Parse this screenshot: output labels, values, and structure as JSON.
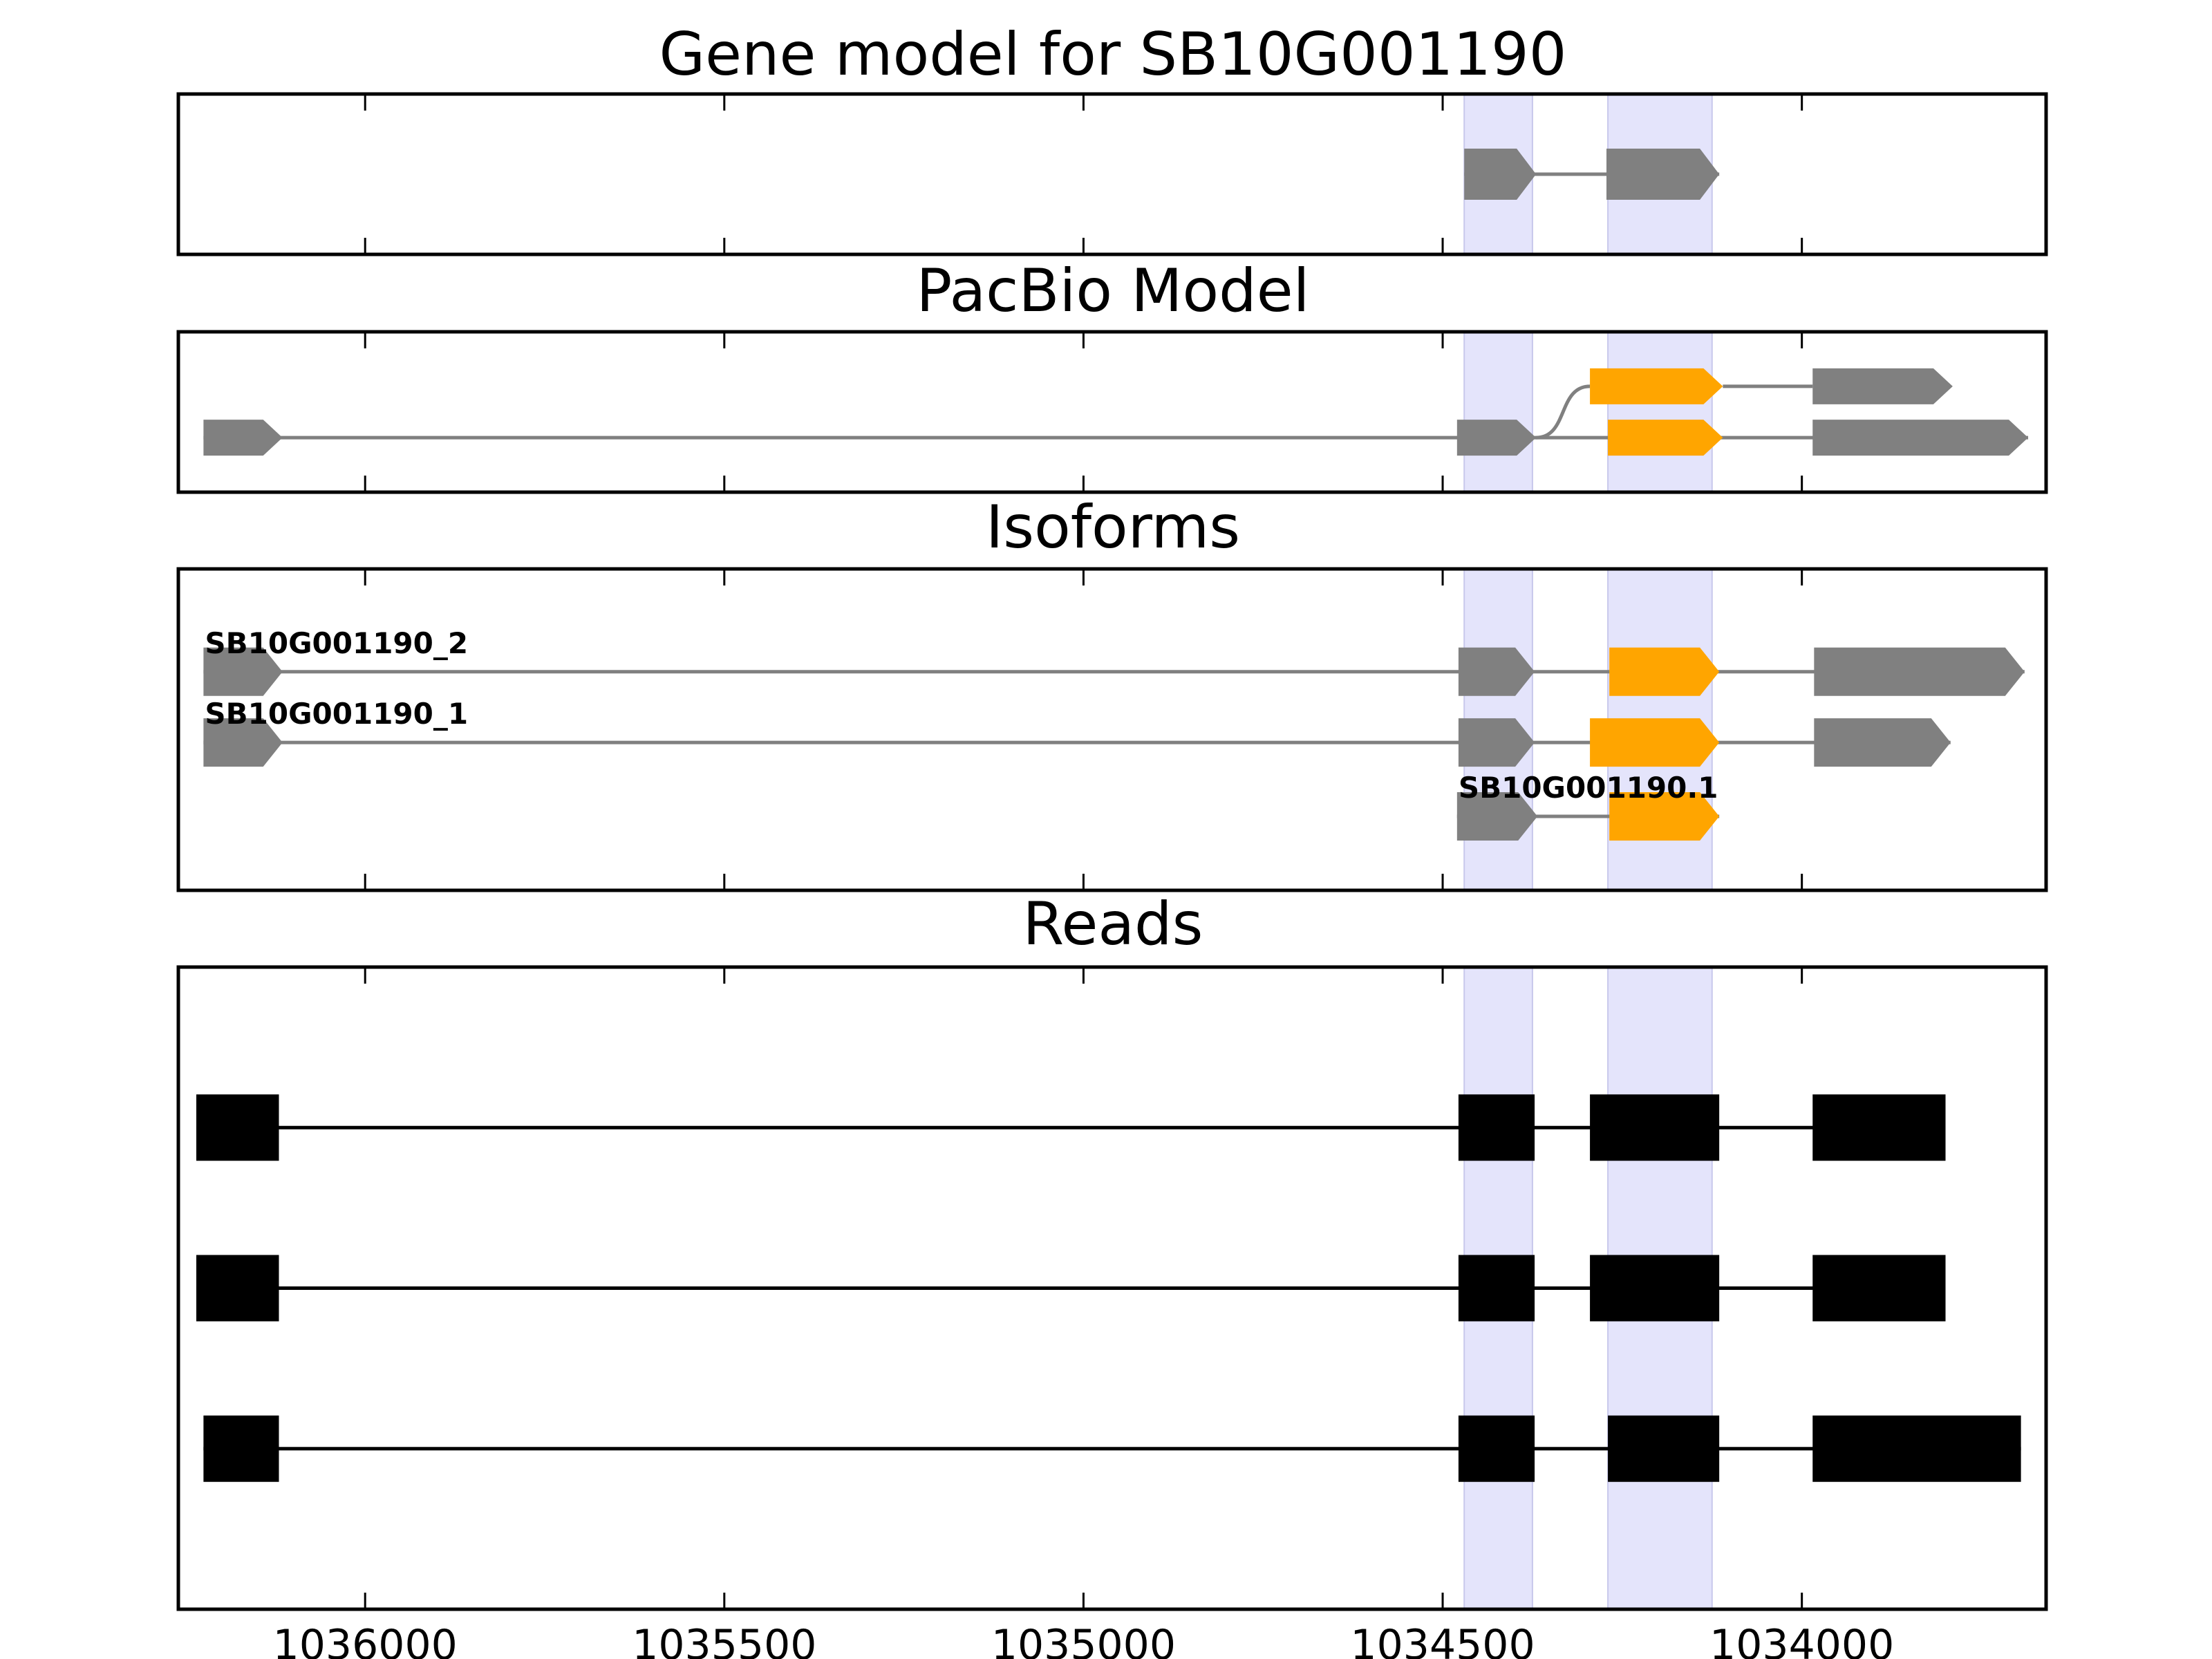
{
  "chart_data": {
    "type": "gene-model-tracks",
    "xlim": [
      1036260,
      1033660
    ],
    "xticks": [
      1036000,
      1035500,
      1035000,
      1034500,
      1034000
    ],
    "highlight_regions": [
      [
        1034470,
        1034375
      ],
      [
        1034270,
        1034125
      ]
    ],
    "colors": {
      "utr": "#808080",
      "cds": "#ffa500",
      "read": "#000000",
      "highlight": "#e4e4fb"
    },
    "panels": [
      {
        "id": "gene-model",
        "title": "Gene model for SB10G001190",
        "tracks": [
          {
            "y": 0.5,
            "label": "",
            "exons": [
              {
                "start": 1034470,
                "end": 1034370,
                "kind": "utr",
                "arrow": true
              },
              {
                "start": 1034272,
                "end": 1034115,
                "kind": "utr",
                "arrow": true
              }
            ],
            "bend": false
          }
        ]
      },
      {
        "id": "pacbio-model",
        "title": "PacBio Model",
        "tracks": [
          {
            "y": 0.34,
            "label": "",
            "exons": [
              {
                "start": 1034295,
                "end": 1034110,
                "kind": "cds",
                "arrow": true
              },
              {
                "start": 1033985,
                "end": 1033790,
                "kind": "utr",
                "arrow": true
              }
            ],
            "bend": true,
            "bend_from": 1034370
          },
          {
            "y": 0.66,
            "label": "",
            "exons": [
              {
                "start": 1036225,
                "end": 1036115,
                "kind": "utr",
                "arrow": true
              },
              {
                "start": 1034480,
                "end": 1034370,
                "kind": "utr",
                "arrow": true
              },
              {
                "start": 1034270,
                "end": 1034110,
                "kind": "cds",
                "arrow": true
              },
              {
                "start": 1033985,
                "end": 1033685,
                "kind": "utr",
                "arrow": true
              }
            ],
            "bend": false
          }
        ]
      },
      {
        "id": "isoforms",
        "title": "Isoforms",
        "tracks": [
          {
            "y": 0.32,
            "label": "SB10G001190_2",
            "exons": [
              {
                "start": 1036225,
                "end": 1036115,
                "kind": "utr",
                "arrow": true
              },
              {
                "start": 1034478,
                "end": 1034372,
                "kind": "utr",
                "arrow": true
              },
              {
                "start": 1034268,
                "end": 1034115,
                "kind": "cds",
                "arrow": true
              },
              {
                "start": 1033983,
                "end": 1033690,
                "kind": "utr",
                "arrow": true
              }
            ],
            "bend": false
          },
          {
            "y": 0.54,
            "label": "SB10G001190_1",
            "exons": [
              {
                "start": 1036225,
                "end": 1036115,
                "kind": "utr",
                "arrow": true
              },
              {
                "start": 1034478,
                "end": 1034372,
                "kind": "utr",
                "arrow": true
              },
              {
                "start": 1034295,
                "end": 1034115,
                "kind": "cds",
                "arrow": true
              },
              {
                "start": 1033983,
                "end": 1033793,
                "kind": "utr",
                "arrow": true
              }
            ],
            "bend": false
          },
          {
            "y": 0.77,
            "label": "SB10G001190.1",
            "exons": [
              {
                "start": 1034480,
                "end": 1034368,
                "kind": "utr",
                "arrow": true
              },
              {
                "start": 1034268,
                "end": 1034115,
                "kind": "cds",
                "arrow": true
              }
            ],
            "bend": false
          }
        ]
      },
      {
        "id": "reads",
        "title": "Reads",
        "tracks": [
          {
            "y": 0.25,
            "label": "",
            "exons": [
              {
                "start": 1036235,
                "end": 1036120,
                "kind": "read",
                "arrow": false
              },
              {
                "start": 1034478,
                "end": 1034372,
                "kind": "read",
                "arrow": false
              },
              {
                "start": 1034295,
                "end": 1034115,
                "kind": "read",
                "arrow": false
              },
              {
                "start": 1033985,
                "end": 1033800,
                "kind": "read",
                "arrow": false
              }
            ],
            "bend": false
          },
          {
            "y": 0.5,
            "label": "",
            "exons": [
              {
                "start": 1036235,
                "end": 1036120,
                "kind": "read",
                "arrow": false
              },
              {
                "start": 1034478,
                "end": 1034372,
                "kind": "read",
                "arrow": false
              },
              {
                "start": 1034295,
                "end": 1034115,
                "kind": "read",
                "arrow": false
              },
              {
                "start": 1033985,
                "end": 1033800,
                "kind": "read",
                "arrow": false
              }
            ],
            "bend": false
          },
          {
            "y": 0.75,
            "label": "",
            "exons": [
              {
                "start": 1036225,
                "end": 1036120,
                "kind": "read",
                "arrow": false
              },
              {
                "start": 1034478,
                "end": 1034372,
                "kind": "read",
                "arrow": false
              },
              {
                "start": 1034270,
                "end": 1034115,
                "kind": "read",
                "arrow": false
              },
              {
                "start": 1033985,
                "end": 1033695,
                "kind": "read",
                "arrow": false
              }
            ],
            "bend": false
          }
        ]
      }
    ]
  }
}
